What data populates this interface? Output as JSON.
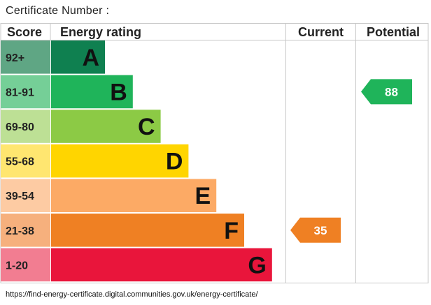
{
  "page": {
    "certificate_label": "Certificate Number :",
    "footer_url": "https://find-energy-certificate.digital.communities.gov.uk/energy-certificate/"
  },
  "chart_data": {
    "type": "table",
    "headers": {
      "score": "Score",
      "rating": "Energy rating",
      "current": "Current",
      "potential": "Potential"
    },
    "bands": [
      {
        "letter": "A",
        "range": "92+",
        "min": 92,
        "max": null,
        "color": "#0f8050",
        "score_color": "#5fa684"
      },
      {
        "letter": "B",
        "range": "81-91",
        "min": 81,
        "max": 91,
        "color": "#1fb45a",
        "score_color": "#75cf97"
      },
      {
        "letter": "C",
        "range": "69-80",
        "min": 69,
        "max": 80,
        "color": "#8cca45",
        "score_color": "#bde095"
      },
      {
        "letter": "D",
        "range": "55-68",
        "min": 55,
        "max": 68,
        "color": "#ffd500",
        "score_color": "#ffe670"
      },
      {
        "letter": "E",
        "range": "39-54",
        "min": 39,
        "max": 54,
        "color": "#fcaa65",
        "score_color": "#fdcba3"
      },
      {
        "letter": "F",
        "range": "21-38",
        "min": 21,
        "max": 38,
        "color": "#ef8023",
        "score_color": "#f6b07d"
      },
      {
        "letter": "G",
        "range": "1-20",
        "min": 1,
        "max": 20,
        "color": "#e9153b",
        "score_color": "#f27d91"
      }
    ],
    "current": {
      "value": 35,
      "band": "F",
      "color": "#ef8023"
    },
    "potential": {
      "value": 88,
      "band": "B",
      "color": "#1fb45a"
    }
  }
}
